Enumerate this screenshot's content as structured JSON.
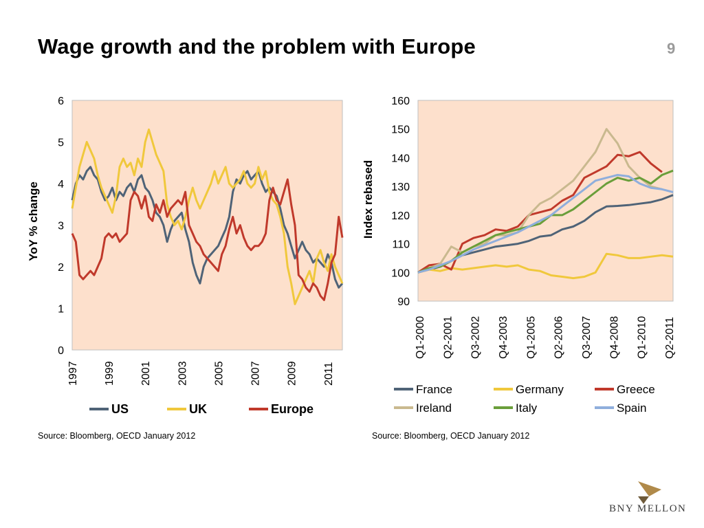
{
  "slide": {
    "title": "Wage growth and the problem with Europe",
    "page_number": "9",
    "source_left": "Source: Bloomberg, OECD January 2012",
    "source_right": "Source: Bloomberg, OECD January 2012",
    "logo_text": "BNY MELLON"
  },
  "chart_data": [
    {
      "type": "line",
      "title": "",
      "xlabel": "",
      "ylabel": "YoY % change",
      "xlim": [
        1997.0,
        2011.8
      ],
      "ylim": [
        0,
        6
      ],
      "yticks": [
        "0",
        "1",
        "2",
        "3",
        "4",
        "5",
        "6"
      ],
      "xticks": [
        "1997",
        "1999",
        "2001",
        "2003",
        "2005",
        "2007",
        "2009",
        "2011"
      ],
      "plot_background": "#fde0cc",
      "legend_position": "bottom",
      "grid": false,
      "series": [
        {
          "name": "US",
          "color": "#4f6377",
          "x": [
            1997,
            1997.2,
            1997.4,
            1997.6,
            1997.8,
            1998,
            1998.2,
            1998.4,
            1998.6,
            1998.8,
            1999,
            1999.2,
            1999.4,
            1999.6,
            1999.8,
            2000,
            2000.2,
            2000.4,
            2000.6,
            2000.8,
            2001,
            2001.2,
            2001.4,
            2001.6,
            2001.8,
            2002,
            2002.2,
            2002.4,
            2002.6,
            2002.8,
            2003,
            2003.2,
            2003.4,
            2003.6,
            2003.8,
            2004,
            2004.2,
            2004.4,
            2004.6,
            2004.8,
            2005,
            2005.2,
            2005.4,
            2005.6,
            2005.8,
            2006,
            2006.2,
            2006.4,
            2006.6,
            2006.8,
            2007,
            2007.2,
            2007.4,
            2007.6,
            2007.8,
            2008,
            2008.2,
            2008.4,
            2008.6,
            2008.8,
            2009,
            2009.2,
            2009.4,
            2009.6,
            2009.8,
            2010,
            2010.2,
            2010.4,
            2010.6,
            2010.8,
            2011,
            2011.2,
            2011.4,
            2011.6,
            2011.8
          ],
          "values": [
            3.6,
            4.0,
            4.2,
            4.1,
            4.3,
            4.4,
            4.2,
            4.1,
            3.8,
            3.6,
            3.7,
            3.9,
            3.6,
            3.8,
            3.7,
            3.9,
            4.0,
            3.8,
            4.1,
            4.2,
            3.9,
            3.8,
            3.6,
            3.3,
            3.2,
            3.0,
            2.6,
            2.9,
            3.1,
            3.2,
            3.3,
            2.9,
            2.6,
            2.1,
            1.8,
            1.6,
            2.0,
            2.2,
            2.3,
            2.4,
            2.5,
            2.7,
            2.9,
            3.2,
            3.8,
            4.1,
            4.0,
            4.2,
            4.3,
            4.1,
            4.2,
            4.3,
            4.0,
            3.8,
            3.9,
            3.8,
            3.7,
            3.4,
            3.0,
            2.8,
            2.5,
            2.2,
            2.4,
            2.6,
            2.4,
            2.3,
            2.1,
            2.2,
            2.1,
            2.0,
            2.3,
            2.1,
            1.7,
            1.5,
            1.6
          ]
        },
        {
          "name": "UK",
          "color": "#f0c83c",
          "x": [
            1997,
            1997.2,
            1997.4,
            1997.6,
            1997.8,
            1998,
            1998.2,
            1998.4,
            1998.6,
            1998.8,
            1999,
            1999.2,
            1999.4,
            1999.6,
            1999.8,
            2000,
            2000.2,
            2000.4,
            2000.6,
            2000.8,
            2001,
            2001.2,
            2001.4,
            2001.6,
            2001.8,
            2002,
            2002.2,
            2002.4,
            2002.6,
            2002.8,
            2003,
            2003.2,
            2003.4,
            2003.6,
            2003.8,
            2004,
            2004.2,
            2004.4,
            2004.6,
            2004.8,
            2005,
            2005.2,
            2005.4,
            2005.6,
            2005.8,
            2006,
            2006.2,
            2006.4,
            2006.6,
            2006.8,
            2007,
            2007.2,
            2007.4,
            2007.6,
            2007.8,
            2008,
            2008.2,
            2008.4,
            2008.6,
            2008.8,
            2009,
            2009.2,
            2009.4,
            2009.6,
            2009.8,
            2010,
            2010.2,
            2010.4,
            2010.6,
            2010.8,
            2011,
            2011.2,
            2011.4,
            2011.6,
            2011.8
          ],
          "values": [
            3.4,
            3.9,
            4.4,
            4.7,
            5.0,
            4.8,
            4.6,
            4.2,
            3.9,
            3.7,
            3.5,
            3.3,
            3.7,
            4.4,
            4.6,
            4.4,
            4.5,
            4.2,
            4.6,
            4.4,
            5.0,
            5.3,
            5.0,
            4.7,
            4.5,
            4.3,
            3.5,
            3.2,
            3.0,
            3.1,
            2.9,
            3.2,
            3.6,
            3.9,
            3.6,
            3.4,
            3.6,
            3.8,
            4.0,
            4.3,
            4.0,
            4.2,
            4.4,
            4.0,
            3.9,
            4.0,
            4.1,
            4.3,
            4.0,
            3.9,
            4.0,
            4.4,
            4.1,
            4.3,
            3.8,
            3.6,
            3.5,
            3.2,
            2.8,
            2.0,
            1.6,
            1.1,
            1.3,
            1.5,
            1.7,
            1.9,
            1.6,
            2.2,
            2.4,
            2.1,
            1.9,
            2.3,
            2.0,
            1.8,
            1.6
          ]
        },
        {
          "name": "Europe",
          "color": "#c0392b",
          "x": [
            1997,
            1997.2,
            1997.4,
            1997.6,
            1997.8,
            1998,
            1998.2,
            1998.4,
            1998.6,
            1998.8,
            1999,
            1999.2,
            1999.4,
            1999.6,
            1999.8,
            2000,
            2000.2,
            2000.4,
            2000.6,
            2000.8,
            2001,
            2001.2,
            2001.4,
            2001.6,
            2001.8,
            2002,
            2002.2,
            2002.4,
            2002.6,
            2002.8,
            2003,
            2003.2,
            2003.4,
            2003.6,
            2003.8,
            2004,
            2004.2,
            2004.4,
            2004.6,
            2004.8,
            2005,
            2005.2,
            2005.4,
            2005.6,
            2005.8,
            2006,
            2006.2,
            2006.4,
            2006.6,
            2006.8,
            2007,
            2007.2,
            2007.4,
            2007.6,
            2007.8,
            2008,
            2008.2,
            2008.4,
            2008.6,
            2008.8,
            2009,
            2009.2,
            2009.4,
            2009.6,
            2009.8,
            2010,
            2010.2,
            2010.4,
            2010.6,
            2010.8,
            2011,
            2011.2,
            2011.4,
            2011.6,
            2011.8
          ],
          "values": [
            2.8,
            2.6,
            1.8,
            1.7,
            1.8,
            1.9,
            1.8,
            2.0,
            2.2,
            2.7,
            2.8,
            2.7,
            2.8,
            2.6,
            2.7,
            2.8,
            3.6,
            3.8,
            3.7,
            3.4,
            3.7,
            3.2,
            3.1,
            3.5,
            3.3,
            3.6,
            3.2,
            3.4,
            3.5,
            3.6,
            3.5,
            3.8,
            3.0,
            2.8,
            2.6,
            2.5,
            2.3,
            2.2,
            2.1,
            2.0,
            1.9,
            2.3,
            2.5,
            2.9,
            3.2,
            2.8,
            3.0,
            2.7,
            2.5,
            2.4,
            2.5,
            2.5,
            2.6,
            2.8,
            3.6,
            3.9,
            3.6,
            3.5,
            3.8,
            4.1,
            3.5,
            3.0,
            1.8,
            1.7,
            1.5,
            1.4,
            1.6,
            1.5,
            1.3,
            1.2,
            1.6,
            2.1,
            2.3,
            3.2,
            2.7
          ]
        }
      ]
    },
    {
      "type": "line",
      "title": "",
      "xlabel": "",
      "ylabel": "Index rebased",
      "xlim": [
        0,
        46
      ],
      "ylim": [
        90,
        160
      ],
      "yticks": [
        "90",
        "100",
        "110",
        "120",
        "130",
        "140",
        "150",
        "160"
      ],
      "xticks": [
        "Q1-2000",
        "Q2-2001",
        "Q3-2002",
        "Q4-2003",
        "Q1-2005",
        "Q2-2006",
        "Q3-2007",
        "Q4-2008",
        "Q1-2010",
        "Q2-2011"
      ],
      "plot_background": "#fde0cc",
      "legend_position": "bottom",
      "grid": false,
      "series": [
        {
          "name": "France",
          "color": "#4f6377",
          "x": [
            0,
            2,
            4,
            6,
            8,
            10,
            12,
            14,
            16,
            18,
            20,
            22,
            24,
            26,
            28,
            30,
            32,
            34,
            36,
            38,
            40,
            42,
            44,
            46
          ],
          "values": [
            100,
            101,
            102,
            104,
            106,
            107,
            108,
            109,
            109.5,
            110,
            111,
            112.5,
            113,
            115,
            116,
            118,
            121,
            123,
            123.2,
            123.5,
            124,
            124.5,
            125.5,
            127
          ]
        },
        {
          "name": "Germany",
          "color": "#f0c83c",
          "x": [
            0,
            2,
            4,
            6,
            8,
            10,
            12,
            14,
            16,
            18,
            20,
            22,
            24,
            26,
            28,
            30,
            32,
            34,
            36,
            38,
            40,
            42,
            44,
            46
          ],
          "values": [
            100,
            101,
            100.5,
            101.5,
            101,
            101.5,
            102,
            102.5,
            102,
            102.5,
            101,
            100.5,
            99,
            98.5,
            98,
            98.5,
            100,
            106.5,
            106,
            105,
            105,
            105.5,
            106,
            105.5
          ]
        },
        {
          "name": "Greece",
          "color": "#c0392b",
          "x": [
            0,
            2,
            4,
            6,
            8,
            10,
            12,
            14,
            16,
            18,
            20,
            22,
            24,
            26,
            28,
            30,
            32,
            34,
            36,
            38,
            40,
            42,
            44,
            46
          ],
          "values": [
            100,
            102.5,
            103,
            101,
            110,
            112,
            113,
            115,
            114.5,
            116,
            120,
            121,
            122,
            125,
            127,
            133,
            135,
            137,
            141,
            140.5,
            142,
            138,
            135,
            null
          ]
        },
        {
          "name": "Ireland",
          "color": "#c9b98f",
          "x": [
            0,
            2,
            4,
            6,
            8,
            10,
            12,
            14,
            16,
            18,
            20,
            22,
            24,
            26,
            28,
            30,
            32,
            34,
            36,
            38,
            40,
            42,
            44,
            46
          ],
          "values": [
            100,
            101.5,
            103,
            109,
            107,
            109,
            110,
            113,
            113,
            114,
            120,
            124,
            126,
            129,
            132,
            137,
            142,
            150,
            145,
            137,
            133,
            130,
            129,
            null
          ]
        },
        {
          "name": "Italy",
          "color": "#6a9e3a",
          "x": [
            0,
            2,
            4,
            6,
            8,
            10,
            12,
            14,
            16,
            18,
            20,
            22,
            24,
            26,
            28,
            30,
            32,
            34,
            36,
            38,
            40,
            42,
            44,
            46
          ],
          "values": [
            100,
            101.5,
            102,
            104,
            107,
            109,
            111,
            113,
            114,
            115,
            116,
            117,
            120,
            120,
            122,
            125,
            128,
            131,
            133,
            132,
            133,
            131,
            134,
            135.5
          ]
        },
        {
          "name": "Spain",
          "color": "#8faedc",
          "x": [
            0,
            2,
            4,
            6,
            8,
            10,
            12,
            14,
            16,
            18,
            20,
            22,
            24,
            26,
            28,
            30,
            32,
            34,
            36,
            38,
            40,
            42,
            44,
            46
          ],
          "values": [
            100,
            101,
            102.5,
            104,
            106,
            108,
            109.5,
            111,
            112.5,
            114,
            116,
            118,
            120,
            123,
            126,
            129,
            132,
            133,
            134,
            133.5,
            131,
            129.5,
            129,
            128
          ]
        }
      ]
    }
  ]
}
